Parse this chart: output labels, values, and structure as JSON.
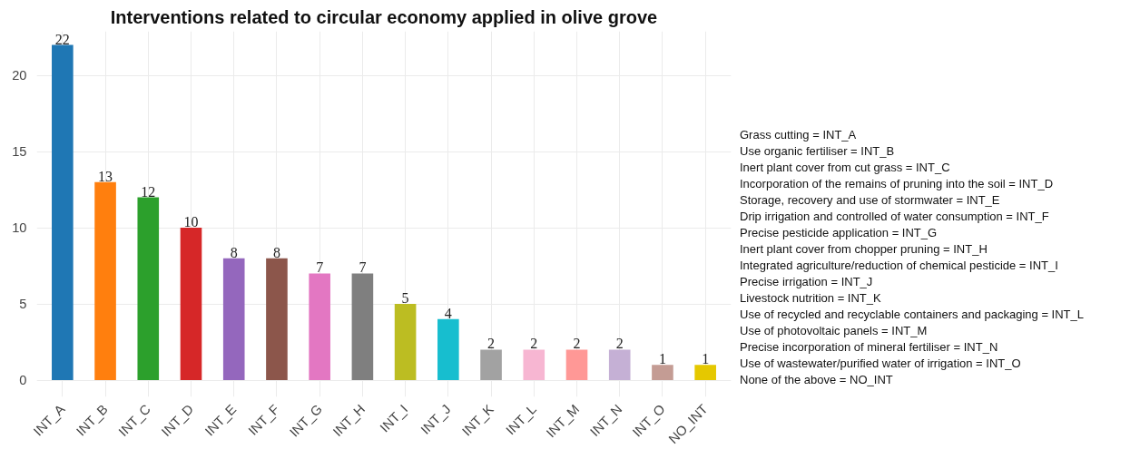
{
  "chart_data": {
    "type": "bar",
    "title": "Interventions related to circular economy applied in olive grove",
    "categories": [
      "INT_A",
      "INT_B",
      "INT_C",
      "INT_D",
      "INT_E",
      "INT_F",
      "INT_G",
      "INT_H",
      "INT_I",
      "INT_J",
      "INT_K",
      "INT_L",
      "INT_M",
      "INT_N",
      "INT_O",
      "NO_INT"
    ],
    "values": [
      22,
      13,
      12,
      10,
      8,
      8,
      7,
      7,
      5,
      4,
      2,
      2,
      2,
      2,
      1,
      1
    ],
    "colors": [
      "#1f77b4",
      "#ff7f0e",
      "#2ca02c",
      "#d62728",
      "#9467bd",
      "#8c564b",
      "#e377c2",
      "#7f7f7f",
      "#bcbd22",
      "#17becf",
      "#a2a2a2",
      "#f7b6d2",
      "#ff9896",
      "#c5b0d5",
      "#c49c94",
      "#e5c800"
    ],
    "ylim": [
      -1.1,
      22.9
    ],
    "yticks": [
      0,
      5,
      10,
      15,
      20
    ],
    "grid": true,
    "data_labels": true,
    "annotations": [
      "Grass cutting = INT_A",
      "Use organic fertiliser = INT_B",
      "Inert plant cover from cut grass = INT_C",
      "Incorporation of the remains of pruning into the soil = INT_D",
      "Storage, recovery and use of stormwater = INT_E",
      "Drip irrigation and controlled of water consumption = INT_F",
      "Precise pesticide application = INT_G",
      "Inert plant cover from chopper pruning = INT_H",
      "Integrated agriculture/reduction of chemical pesticide = INT_I",
      "Precise irrigation = INT_J",
      "Livestock nutrition = INT_K",
      "Use of recycled and recyclable containers and packaging = INT_L",
      "Use of photovoltaic panels = INT_M",
      "Precise incorporation of mineral fertiliser = INT_N",
      "Use of wastewater/purified water of irrigation = INT_O",
      "None of the above = NO_INT"
    ]
  }
}
